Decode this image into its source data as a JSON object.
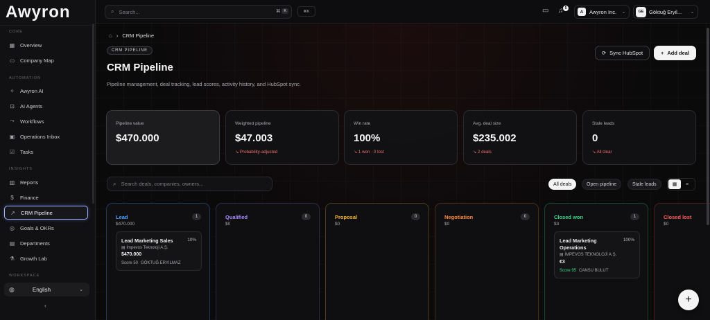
{
  "app": {
    "logo": "Awyron"
  },
  "sidebar": {
    "sections": [
      {
        "label": "CORE",
        "items": [
          {
            "label": "Overview",
            "icon": "grid-icon"
          },
          {
            "label": "Company Map",
            "icon": "map-icon"
          }
        ]
      },
      {
        "label": "AUTOMATION",
        "items": [
          {
            "label": "Awyron AI",
            "icon": "sparkle-icon"
          },
          {
            "label": "AI Agents",
            "icon": "bot-icon"
          },
          {
            "label": "Workflows",
            "icon": "workflow-icon"
          },
          {
            "label": "Operations Inbox",
            "icon": "inbox-icon"
          },
          {
            "label": "Tasks",
            "icon": "checkbox-icon"
          }
        ]
      },
      {
        "label": "INSIGHTS",
        "items": [
          {
            "label": "Reports",
            "icon": "bar-chart-icon"
          },
          {
            "label": "Finance",
            "icon": "dollar-icon"
          },
          {
            "label": "CRM Pipeline",
            "icon": "trend-icon",
            "active": true
          },
          {
            "label": "Goals & OKRs",
            "icon": "target-icon"
          },
          {
            "label": "Departments",
            "icon": "building-icon"
          },
          {
            "label": "Growth Lab",
            "icon": "flask-icon"
          }
        ]
      },
      {
        "label": "WORKSPACE",
        "items": []
      }
    ],
    "language": "English"
  },
  "topbar": {
    "search_placeholder": "Search...",
    "search_shortcut": "⌘",
    "search_shortcut_key": "K",
    "cmdk": "⌘K",
    "notification_count": "5",
    "org": {
      "avatar": "A",
      "name": "Awyron Inc."
    },
    "user": {
      "avatar": "GE",
      "name": "Göktuğ Eryil..."
    }
  },
  "page": {
    "breadcrumb": "CRM Pipeline",
    "tag": "CRM PIPELINE",
    "title": "CRM Pipeline",
    "subtitle": "Pipeline management, deal tracking, lead scores, activity history, and HubSpot sync.",
    "sync_label": "Sync HubSpot",
    "add_label": "Add deal"
  },
  "kpis": [
    {
      "label": "Pipeline value",
      "value": "$470.000",
      "sub": ""
    },
    {
      "label": "Weighted pipeline",
      "value": "$47.003",
      "sub": "Probability-adjusted"
    },
    {
      "label": "Win rate",
      "value": "100%",
      "sub": "1 won · 0 lost"
    },
    {
      "label": "Avg. deal size",
      "value": "$235.002",
      "sub": "2 deals"
    },
    {
      "label": "Stale leads",
      "value": "0",
      "sub": "All clear"
    }
  ],
  "filters": {
    "search_placeholder": "Search deals, companies, owners...",
    "tabs": [
      "All deals",
      "Open pipeline",
      "Stale leads"
    ]
  },
  "columns": [
    {
      "name": "Lead",
      "amount": "$470.000",
      "count": "1",
      "color": "#4aa3ff",
      "border": "#1f3a55",
      "card": {
        "title": "Lead Marketing Sales",
        "pct": "10%",
        "company": "İmpevos Teknoloji A.Ş.",
        "amount": "$470.000",
        "score": "Score 50",
        "owner": "GÖKTUĞ ERYILMAZ"
      }
    },
    {
      "name": "Qualified",
      "amount": "$0",
      "count": "0",
      "color": "#a98bff",
      "border": "#2e2a48"
    },
    {
      "name": "Proposal",
      "amount": "$0",
      "count": "0",
      "color": "#f5b935",
      "border": "#4a3a18"
    },
    {
      "name": "Negotiation",
      "amount": "$0",
      "count": "0",
      "color": "#ff8a3d",
      "border": "#4a2c18"
    },
    {
      "name": "Closed won",
      "amount": "$3",
      "count": "1",
      "color": "#3bd68a",
      "border": "#1c4430",
      "card": {
        "title": "Lead Marketing Operations",
        "pct": "100%",
        "company": "İMPEVOS TEKNOLOJİ A.Ş.",
        "amount": "€3",
        "score": "Score 95",
        "owner": "CANSU BULUT"
      }
    },
    {
      "name": "Closed lost",
      "amount": "$0",
      "count": "",
      "color": "#ff5a5a",
      "border": "#4a1c1c"
    }
  ]
}
